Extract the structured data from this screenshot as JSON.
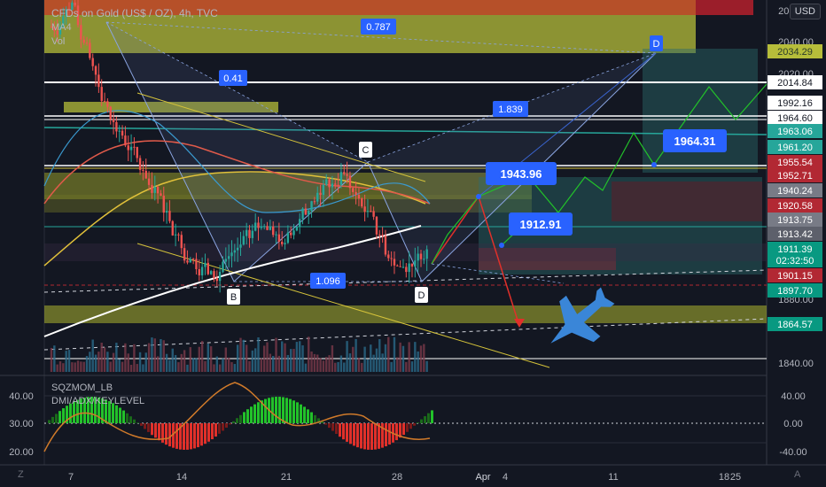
{
  "header": {
    "symbol_line": "CFDs on Gold (US$ / OZ), 4h, TVC",
    "ind1": "MA4",
    "ind2": "Vol",
    "currency": "USD"
  },
  "osc_header": {
    "line1": "SQZMOM_LB",
    "line2": "DMI/ADX/KEYLEVEL"
  },
  "corners": {
    "left": "Z",
    "right": "A"
  },
  "chart_data": {
    "type": "candlestick",
    "title": "CFDs on Gold (US$ / OZ), 4h, TVC",
    "price_axis": {
      "ticks": [
        "2060.00",
        "2040.00",
        "2020.00",
        "1880.00",
        "1840.00"
      ],
      "labels": [
        {
          "text": "2034.29",
          "color": "#2a3a2a",
          "bg": "#b6bd3a"
        },
        {
          "text": "2014.84",
          "color": "#131722",
          "bg": "#ffffff"
        },
        {
          "text": "1992.16",
          "color": "#131722",
          "bg": "#ffffff"
        },
        {
          "text": "1964.60",
          "color": "#131722",
          "bg": "#ffffff"
        },
        {
          "text": "1963.06",
          "color": "#ffffff",
          "bg": "#26a69a"
        },
        {
          "text": "1961.20",
          "color": "#ffffff",
          "bg": "#26a69a"
        },
        {
          "text": "1955.54",
          "color": "#ffffff",
          "bg": "#b22833"
        },
        {
          "text": "1952.71",
          "color": "#ffffff",
          "bg": "#b22833"
        },
        {
          "text": "1940.24",
          "color": "#ffffff",
          "bg": "#787b86"
        },
        {
          "text": "1920.58",
          "color": "#ffffff",
          "bg": "#b22833"
        },
        {
          "text": "1913.75",
          "color": "#ffffff",
          "bg": "#787b86"
        },
        {
          "text": "1913.42",
          "color": "#ffffff",
          "bg": "#5d606b"
        },
        {
          "text": "1911.39",
          "color": "#ffffff",
          "bg": "#089981"
        },
        {
          "text": "02:32:50",
          "color": "#ffffff",
          "bg": "#089981"
        },
        {
          "text": "1901.15",
          "color": "#ffffff",
          "bg": "#b22833"
        },
        {
          "text": "1897.70",
          "color": "#ffffff",
          "bg": "#089981"
        },
        {
          "text": "1864.57",
          "color": "#ffffff",
          "bg": "#089981"
        }
      ]
    },
    "osc_axis": {
      "left_ticks": [
        "40.00",
        "30.00",
        "20.00"
      ],
      "right_ticks": [
        "40.00",
        "0.00",
        "-40.00"
      ]
    },
    "time_axis": {
      "ticks": [
        "7",
        "14",
        "21",
        "28",
        "Apr",
        "4",
        "11",
        "18",
        "25"
      ]
    },
    "annotations": {
      "fib_ratios": [
        "0.787",
        "0.41",
        "1.839",
        "1.096"
      ],
      "pattern_points": [
        "B",
        "C",
        "D",
        "D"
      ],
      "targets": [
        "1943.96",
        "1912.91",
        "1964.31"
      ]
    },
    "series": [
      {
        "name": "price",
        "values": [
          2050,
          2065,
          2040,
          2020,
          2000,
          1985,
          1975,
          1960,
          1950,
          1935,
          1920,
          1905,
          1900,
          1893,
          1905,
          1912,
          1918,
          1925,
          1920,
          1915,
          1925,
          1935,
          1945,
          1952,
          1958,
          1945,
          1935,
          1920,
          1905,
          1900,
          1904,
          1911
        ]
      }
    ]
  }
}
